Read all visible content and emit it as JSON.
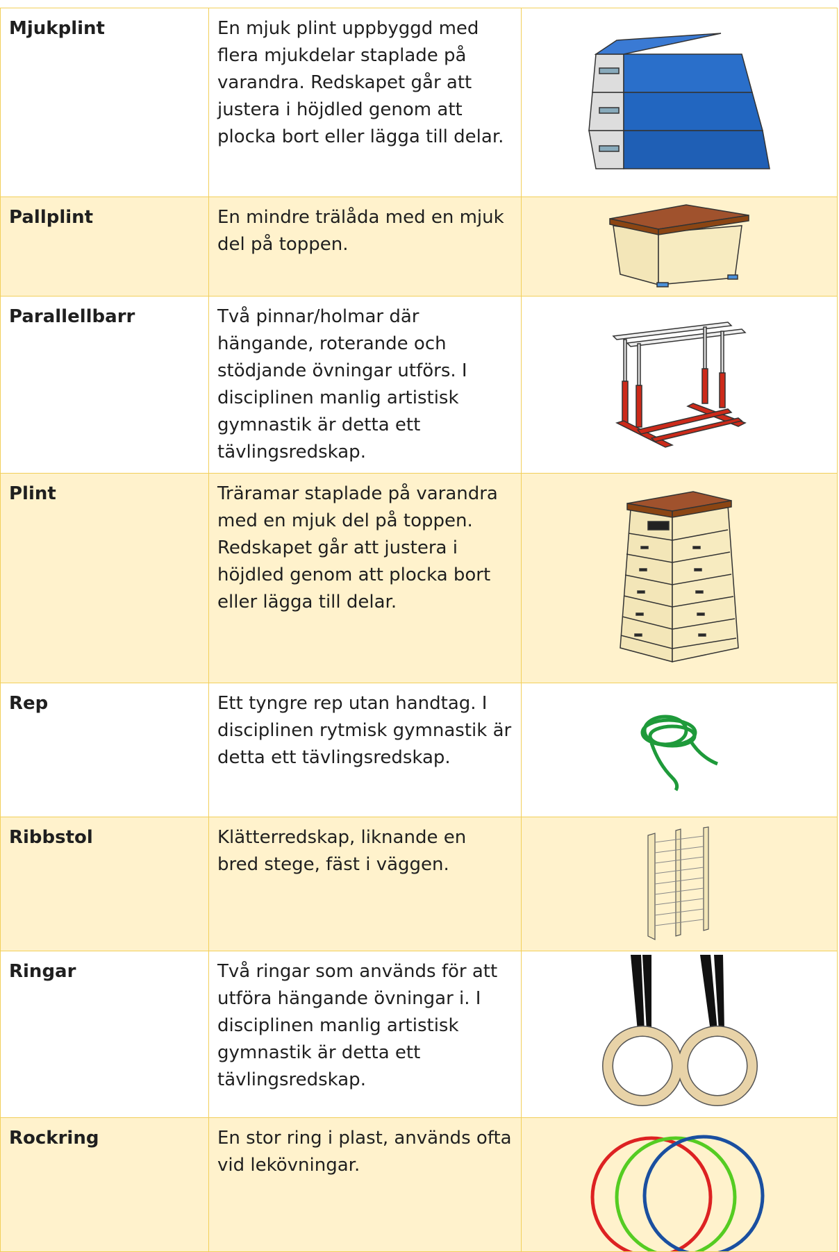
{
  "table": {
    "rows": [
      [
        "Mjukplint",
        "En mjuk plint uppbyggd med flera mjukdelar staplade på varandra. Redskapet går att justera i höjdled genom att plocka bort eller lägga till delar."
      ],
      [
        "Pallplint",
        "En mindre trälåda med en mjuk del på toppen."
      ],
      [
        "Parallellbarr",
        "Två pinnar/holmar där hängande, roterande och stödjande övningar utförs. I disciplinen manlig artistisk gymnastik är detta ett tävlingsredskap."
      ],
      [
        "Plint",
        "Träramar staplade på varandra med en mjuk del på toppen. Redskapet går att justera i höjdled genom att plocka bort eller lägga till delar."
      ],
      [
        "Rep",
        "Ett tyngre rep utan handtag. I disciplinen rytmisk gymnastik är detta ett tävlingsredskap."
      ],
      [
        "Ribbstol",
        "Klätterredskap, liknande en bred stege, fäst i väggen."
      ],
      [
        "Ringar",
        "Två ringar som används för att utföra hängande övningar i. I disciplinen manlig artistisk gymnastik är detta ett tävlingsredskap."
      ],
      [
        "Rockring",
        "En stor ring i plast, används ofta vid lekövningar."
      ]
    ]
  }
}
